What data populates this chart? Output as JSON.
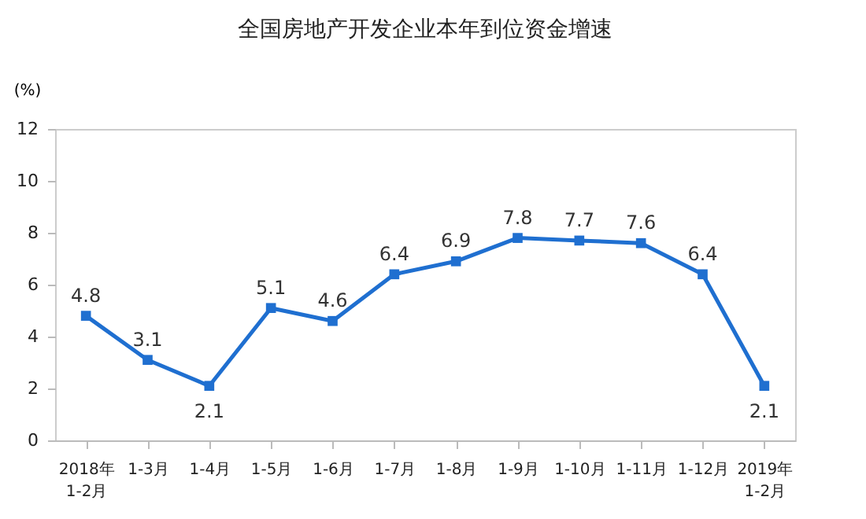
{
  "chart_data": {
    "type": "line",
    "title": "全国房地产开发企业本年到位资金增速",
    "ylabel": "(%)",
    "categories": [
      "2018年\n1-2月",
      "1-3月",
      "1-4月",
      "1-5月",
      "1-6月",
      "1-7月",
      "1-8月",
      "1-9月",
      "1-10月",
      "1-11月",
      "1-12月",
      "2019年\n1-2月"
    ],
    "series": [
      {
        "color": "#1f6fd0",
        "values": [
          4.8,
          3.1,
          2.1,
          5.1,
          4.6,
          6.4,
          6.9,
          7.8,
          7.7,
          7.6,
          6.4,
          2.1
        ]
      }
    ],
    "ylim": [
      0,
      12
    ],
    "yticks": [
      0,
      2,
      4,
      6,
      8,
      10,
      12
    ],
    "marker": "square",
    "data_labels": true,
    "grid": false
  }
}
